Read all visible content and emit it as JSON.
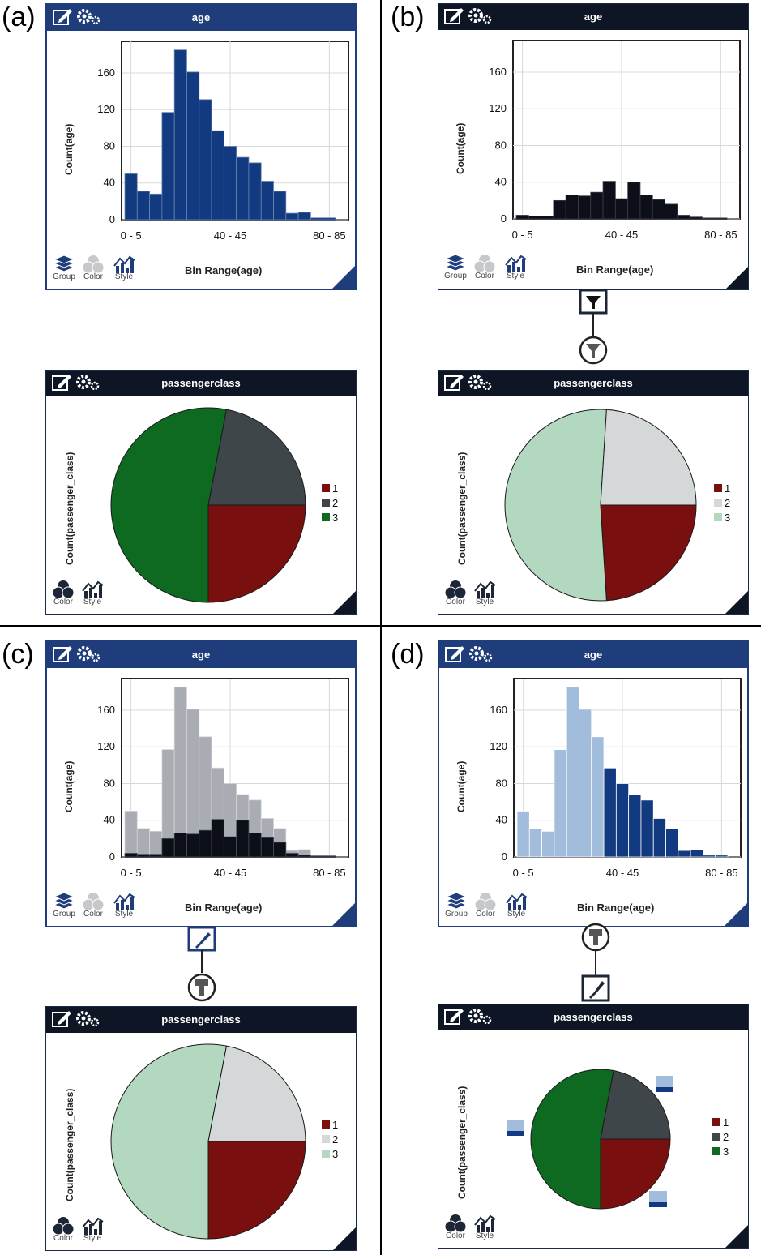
{
  "labels": {
    "a": "(a)",
    "b": "(b)",
    "c": "(c)",
    "d": "(d)"
  },
  "age_chart": {
    "title": "age",
    "ylabel": "Count(age)",
    "xlabel": "Bin Range(age)",
    "yticks": [
      "0",
      "40",
      "80",
      "120",
      "160"
    ],
    "xticks": [
      "0 - 5",
      "40 - 45",
      "80 - 85"
    ],
    "buttons": {
      "group": "Group",
      "color": "Color",
      "style": "Style"
    }
  },
  "class_chart": {
    "title": "passengerclass",
    "ylabel": "Count(passenger_class)",
    "legend": [
      "1",
      "2",
      "3"
    ],
    "buttons": {
      "color": "Color",
      "style": "Style"
    }
  },
  "colors": {
    "navy": "#123a80",
    "black": "#0c0f18",
    "grey_hist": "#a9adb3",
    "light_blue": "#a2bddc",
    "class1": "#7a0f0f",
    "class2": "#3f4649",
    "class3": "#0e6a21",
    "class2_light": "#d5d8d8",
    "class3_light": "#b2d8bf"
  },
  "chart_data": [
    {
      "panel": "a",
      "type": "bar",
      "ylim": [
        0,
        190
      ],
      "bins": [
        "0-5",
        "5-10",
        "10-15",
        "15-20",
        "20-25",
        "25-30",
        "30-35",
        "35-40",
        "40-45",
        "45-50",
        "50-55",
        "55-60",
        "60-65",
        "65-70",
        "70-75",
        "75-80",
        "80-85"
      ],
      "values": [
        50,
        31,
        28,
        117,
        185,
        161,
        131,
        97,
        80,
        68,
        62,
        42,
        31,
        7,
        8,
        2,
        2
      ]
    },
    {
      "panel": "b",
      "type": "bar",
      "ylim": [
        0,
        190
      ],
      "values": [
        4,
        3,
        3,
        20,
        26,
        25,
        29,
        41,
        22,
        40,
        26,
        21,
        16,
        4,
        2,
        1,
        1
      ]
    },
    {
      "panel": "c",
      "type": "bar",
      "ylim": [
        0,
        190
      ],
      "series": [
        {
          "values": [
            50,
            31,
            28,
            117,
            185,
            161,
            131,
            97,
            80,
            68,
            62,
            42,
            31,
            7,
            8,
            2,
            2
          ]
        },
        {
          "values": [
            4,
            3,
            3,
            20,
            26,
            25,
            29,
            41,
            22,
            40,
            26,
            21,
            16,
            4,
            2,
            1,
            1
          ]
        }
      ]
    },
    {
      "panel": "d",
      "type": "bar",
      "ylim": [
        0,
        190
      ],
      "values": [
        50,
        31,
        28,
        117,
        185,
        161,
        131,
        97,
        80,
        68,
        62,
        42,
        31,
        7,
        8,
        2,
        2
      ],
      "highlighted_from_bin": "35-40"
    },
    {
      "panel": "a",
      "type": "pie",
      "categories": [
        "1",
        "2",
        "3"
      ],
      "values": [
        25,
        22,
        53
      ]
    },
    {
      "panel": "b",
      "type": "pie",
      "categories": [
        "1",
        "2",
        "3"
      ],
      "values": [
        24,
        24,
        52
      ]
    },
    {
      "panel": "c",
      "type": "pie",
      "categories": [
        "1",
        "2",
        "3"
      ],
      "values": [
        25,
        22,
        53
      ]
    },
    {
      "panel": "d",
      "type": "pie",
      "categories": [
        "1",
        "2",
        "3"
      ],
      "values": [
        25,
        22,
        53
      ]
    }
  ]
}
